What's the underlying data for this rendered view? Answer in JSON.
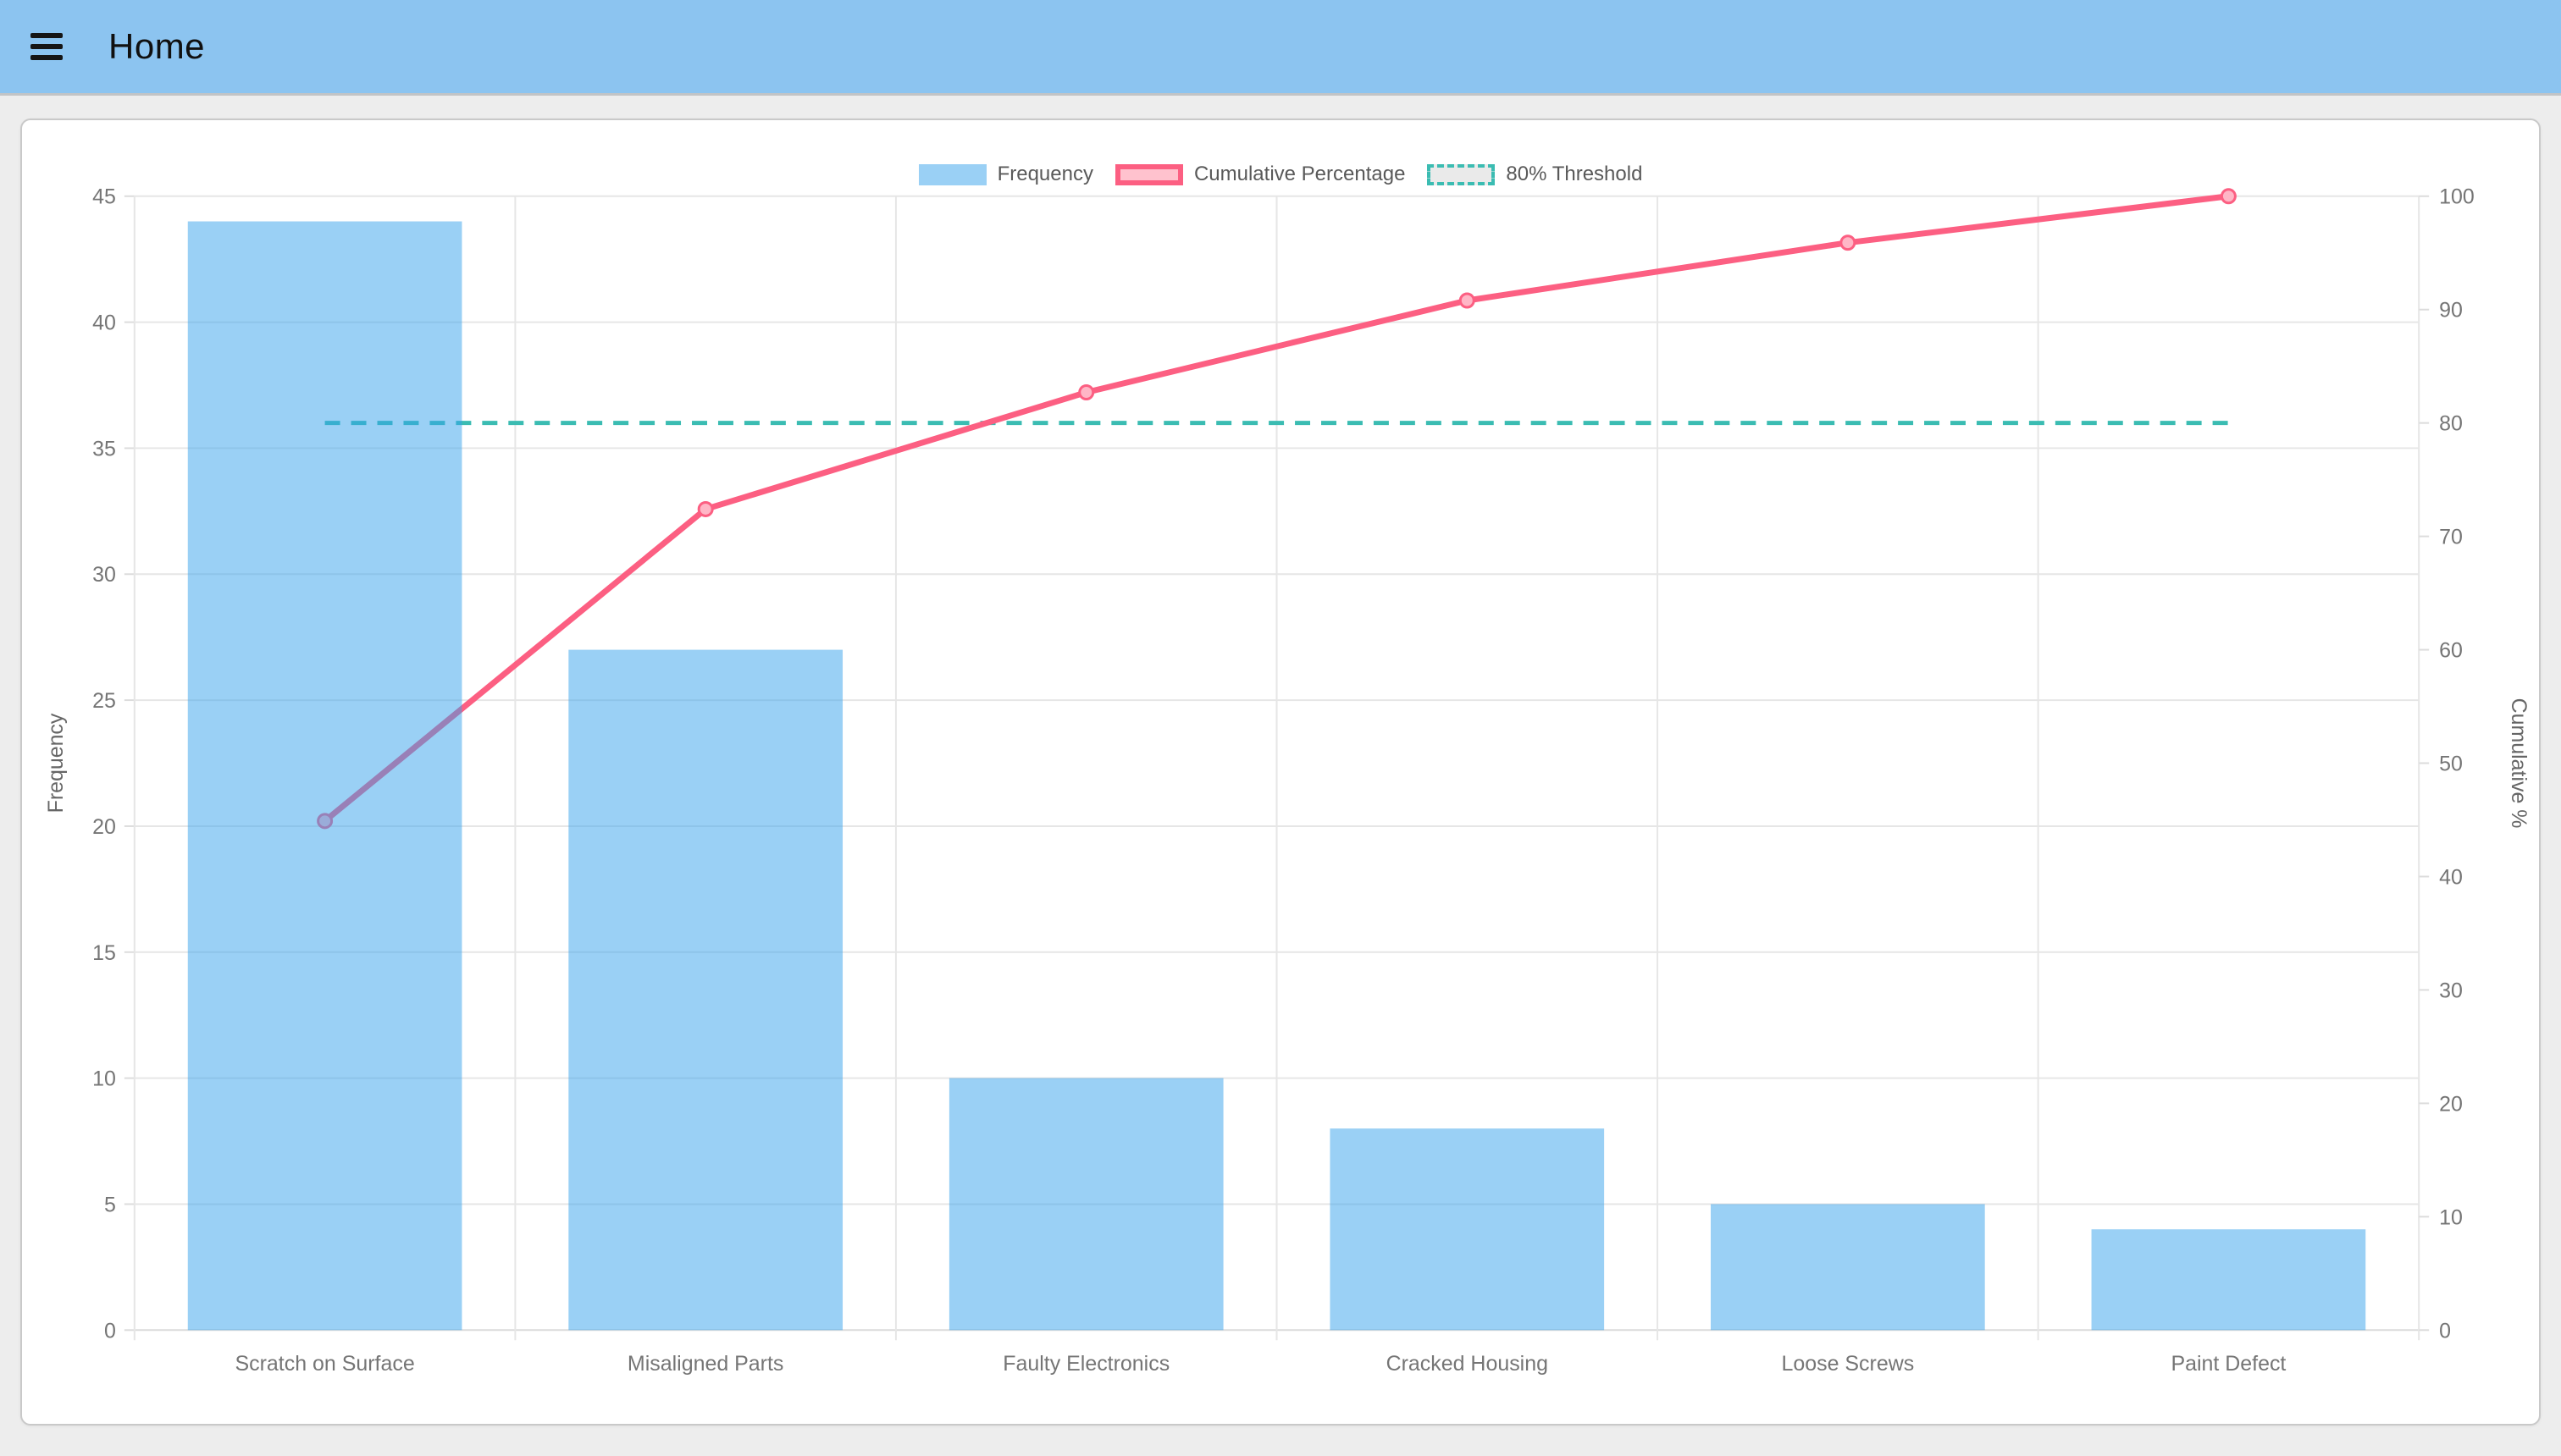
{
  "header": {
    "title": "Home",
    "menu_icon": "hamburger-icon"
  },
  "chart_data": {
    "type": "pareto (bar + line combo)",
    "categories": [
      "Scratch on Surface",
      "Misaligned Parts",
      "Faulty Electronics",
      "Cracked Housing",
      "Loose Screws",
      "Paint Defect"
    ],
    "series": [
      {
        "name": "Frequency",
        "type": "bar",
        "axis": "left",
        "values": [
          44,
          27,
          10,
          8,
          5,
          4
        ],
        "color": "rgb(54,162,235)",
        "fill_opacity": 0.5
      },
      {
        "name": "Cumulative Percentage",
        "type": "line",
        "axis": "right",
        "values": [
          44.9,
          72.4,
          82.7,
          90.8,
          95.9,
          100
        ],
        "color": "#fc5f82",
        "point_fill": "#ffb6c6",
        "line_width": 7,
        "point_radius": 8
      },
      {
        "name": "80% Threshold",
        "type": "threshold-line",
        "axis": "right",
        "value": 80,
        "style": "dashed",
        "color": "#3bbcb2"
      }
    ],
    "left_axis": {
      "title": "Frequency",
      "min": 0,
      "max": 45,
      "step": 5,
      "ticks": [
        0,
        5,
        10,
        15,
        20,
        25,
        30,
        35,
        40,
        45
      ]
    },
    "right_axis": {
      "title": "Cumulative %",
      "min": 0,
      "max": 100,
      "step": 10,
      "ticks": [
        0,
        10,
        20,
        30,
        40,
        50,
        60,
        70,
        80,
        90,
        100
      ]
    },
    "legend_position": "top",
    "grid": true,
    "colors": {
      "grid_line": "#e6e6e6",
      "axis_line": "#dcdcdc",
      "tick_text": "#757575",
      "axis_title_text": "#666666",
      "legend_text": "#595959",
      "bar_blend_over_white": "#9ad0f5",
      "line_under_bar_blend": "#9a82b7",
      "header_bg": "#8cc4f0",
      "page_bg": "#ededed",
      "card_bg": "#ffffff"
    }
  }
}
